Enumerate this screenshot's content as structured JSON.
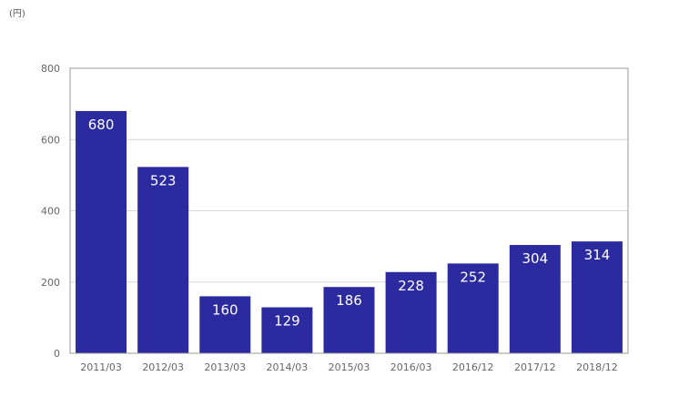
{
  "unit_label": "(円)",
  "chart_data": {
    "type": "bar",
    "categories": [
      "2011/03",
      "2012/03",
      "2013/03",
      "2014/03",
      "2015/03",
      "2016/03",
      "2016/12",
      "2017/12",
      "2018/12"
    ],
    "values": [
      680,
      523,
      160,
      129,
      186,
      228,
      252,
      304,
      314
    ],
    "yticks": [
      0,
      200,
      400,
      600,
      800
    ],
    "ylim": [
      0,
      800
    ],
    "grid": true,
    "legend": "none",
    "bar_color": "#2b2a9e",
    "grid_color": "#d9d9d9",
    "axis_color": "#999999"
  }
}
